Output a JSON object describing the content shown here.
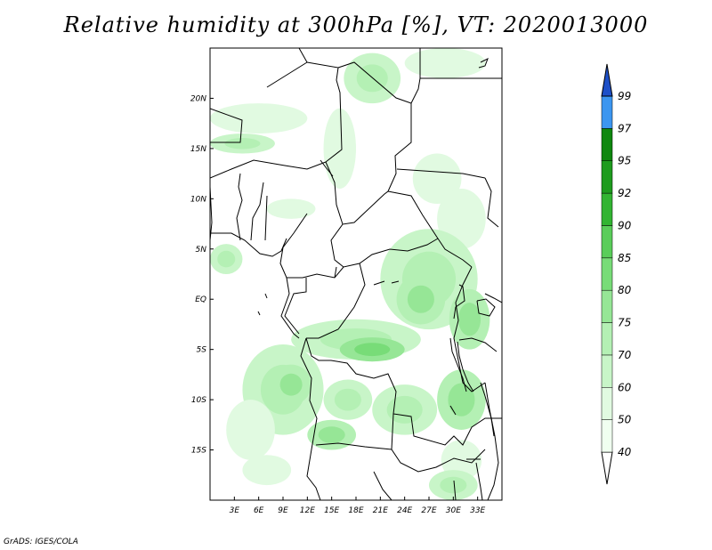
{
  "title": "Relative humidity at 300hPa [%], VT: 2020013000",
  "credit": "GrADS: IGES/COLA",
  "map": {
    "lon_range": [
      0,
      36
    ],
    "lat_range": [
      -20,
      25
    ],
    "lat_ticks": [
      {
        "value": 20,
        "label": "20N"
      },
      {
        "value": 15,
        "label": "15N"
      },
      {
        "value": 10,
        "label": "10N"
      },
      {
        "value": 5,
        "label": "5N"
      },
      {
        "value": 0,
        "label": "EQ"
      },
      {
        "value": -5,
        "label": "5S"
      },
      {
        "value": -10,
        "label": "10S"
      },
      {
        "value": -15,
        "label": "15S"
      }
    ],
    "lon_ticks": [
      {
        "value": 3,
        "label": "3E"
      },
      {
        "value": 6,
        "label": "6E"
      },
      {
        "value": 9,
        "label": "9E"
      },
      {
        "value": 12,
        "label": "12E"
      },
      {
        "value": 15,
        "label": "15E"
      },
      {
        "value": 18,
        "label": "18E"
      },
      {
        "value": 21,
        "label": "21E"
      },
      {
        "value": 24,
        "label": "24E"
      },
      {
        "value": 27,
        "label": "27E"
      },
      {
        "value": 30,
        "label": "30E"
      },
      {
        "value": 33,
        "label": "33E"
      }
    ]
  },
  "colorbar": {
    "levels": [
      {
        "label": "40",
        "color": "#f0fff0"
      },
      {
        "label": "50",
        "color": "#e1fae1"
      },
      {
        "label": "60",
        "color": "#c8f5c8"
      },
      {
        "label": "70",
        "color": "#b4f0b4"
      },
      {
        "label": "75",
        "color": "#96e696"
      },
      {
        "label": "80",
        "color": "#78dc78"
      },
      {
        "label": "85",
        "color": "#5acd5a"
      },
      {
        "label": "90",
        "color": "#32b432"
      },
      {
        "label": "92",
        "color": "#1e9b1e"
      },
      {
        "label": "95",
        "color": "#0f870f"
      },
      {
        "label": "97",
        "color": "#3c96f0"
      },
      {
        "label": "99",
        "color": "#1e6ee6"
      }
    ],
    "top_color": "#1e50c8",
    "bottom_color": "#ffffff"
  },
  "humidity_regions": [
    {
      "lon": 6,
      "lat": 18,
      "rx": 6,
      "ry": 1.5,
      "level": 1
    },
    {
      "lon": 4,
      "lat": 15.5,
      "rx": 4,
      "ry": 1,
      "level": 2
    },
    {
      "lon": 20,
      "lat": 22,
      "rx": 3.5,
      "ry": 2.5,
      "level": 2
    },
    {
      "lon": 29,
      "lat": 23.5,
      "rx": 5,
      "ry": 1.5,
      "level": 1
    },
    {
      "lon": 16,
      "lat": 15,
      "rx": 2,
      "ry": 4,
      "level": 1
    },
    {
      "lon": 28,
      "lat": 12,
      "rx": 3,
      "ry": 2.5,
      "level": 1
    },
    {
      "lon": 31,
      "lat": 8,
      "rx": 3,
      "ry": 3,
      "level": 1
    },
    {
      "lon": 10,
      "lat": 9,
      "rx": 3,
      "ry": 1,
      "level": 1
    },
    {
      "lon": 2,
      "lat": 4,
      "rx": 2,
      "ry": 1.5,
      "level": 2
    },
    {
      "lon": 27,
      "lat": 2,
      "rx": 6,
      "ry": 5,
      "level": 2
    },
    {
      "lon": 26,
      "lat": 0,
      "rx": 3,
      "ry": 2.5,
      "level": 3
    },
    {
      "lon": 32,
      "lat": -2,
      "rx": 2.5,
      "ry": 3,
      "level": 3
    },
    {
      "lon": 18,
      "lat": -4,
      "rx": 8,
      "ry": 2,
      "level": 2
    },
    {
      "lon": 20,
      "lat": -5,
      "rx": 4,
      "ry": 1.2,
      "level": 4
    },
    {
      "lon": 9,
      "lat": -9,
      "rx": 5,
      "ry": 4.5,
      "level": 2
    },
    {
      "lon": 10,
      "lat": -8.5,
      "rx": 2.5,
      "ry": 2,
      "level": 3
    },
    {
      "lon": 5,
      "lat": -13,
      "rx": 3,
      "ry": 3,
      "level": 1
    },
    {
      "lon": 17,
      "lat": -10,
      "rx": 3,
      "ry": 2,
      "level": 2
    },
    {
      "lon": 24,
      "lat": -11,
      "rx": 4,
      "ry": 2.5,
      "level": 2
    },
    {
      "lon": 15,
      "lat": -13.5,
      "rx": 3,
      "ry": 1.5,
      "level": 3
    },
    {
      "lon": 31,
      "lat": -10,
      "rx": 3,
      "ry": 3,
      "level": 3
    },
    {
      "lon": 31,
      "lat": -16,
      "rx": 2.5,
      "ry": 2,
      "level": 1
    },
    {
      "lon": 30,
      "lat": -18.5,
      "rx": 3,
      "ry": 1.5,
      "level": 2
    },
    {
      "lon": 7,
      "lat": -17,
      "rx": 3,
      "ry": 1.5,
      "level": 1
    }
  ]
}
